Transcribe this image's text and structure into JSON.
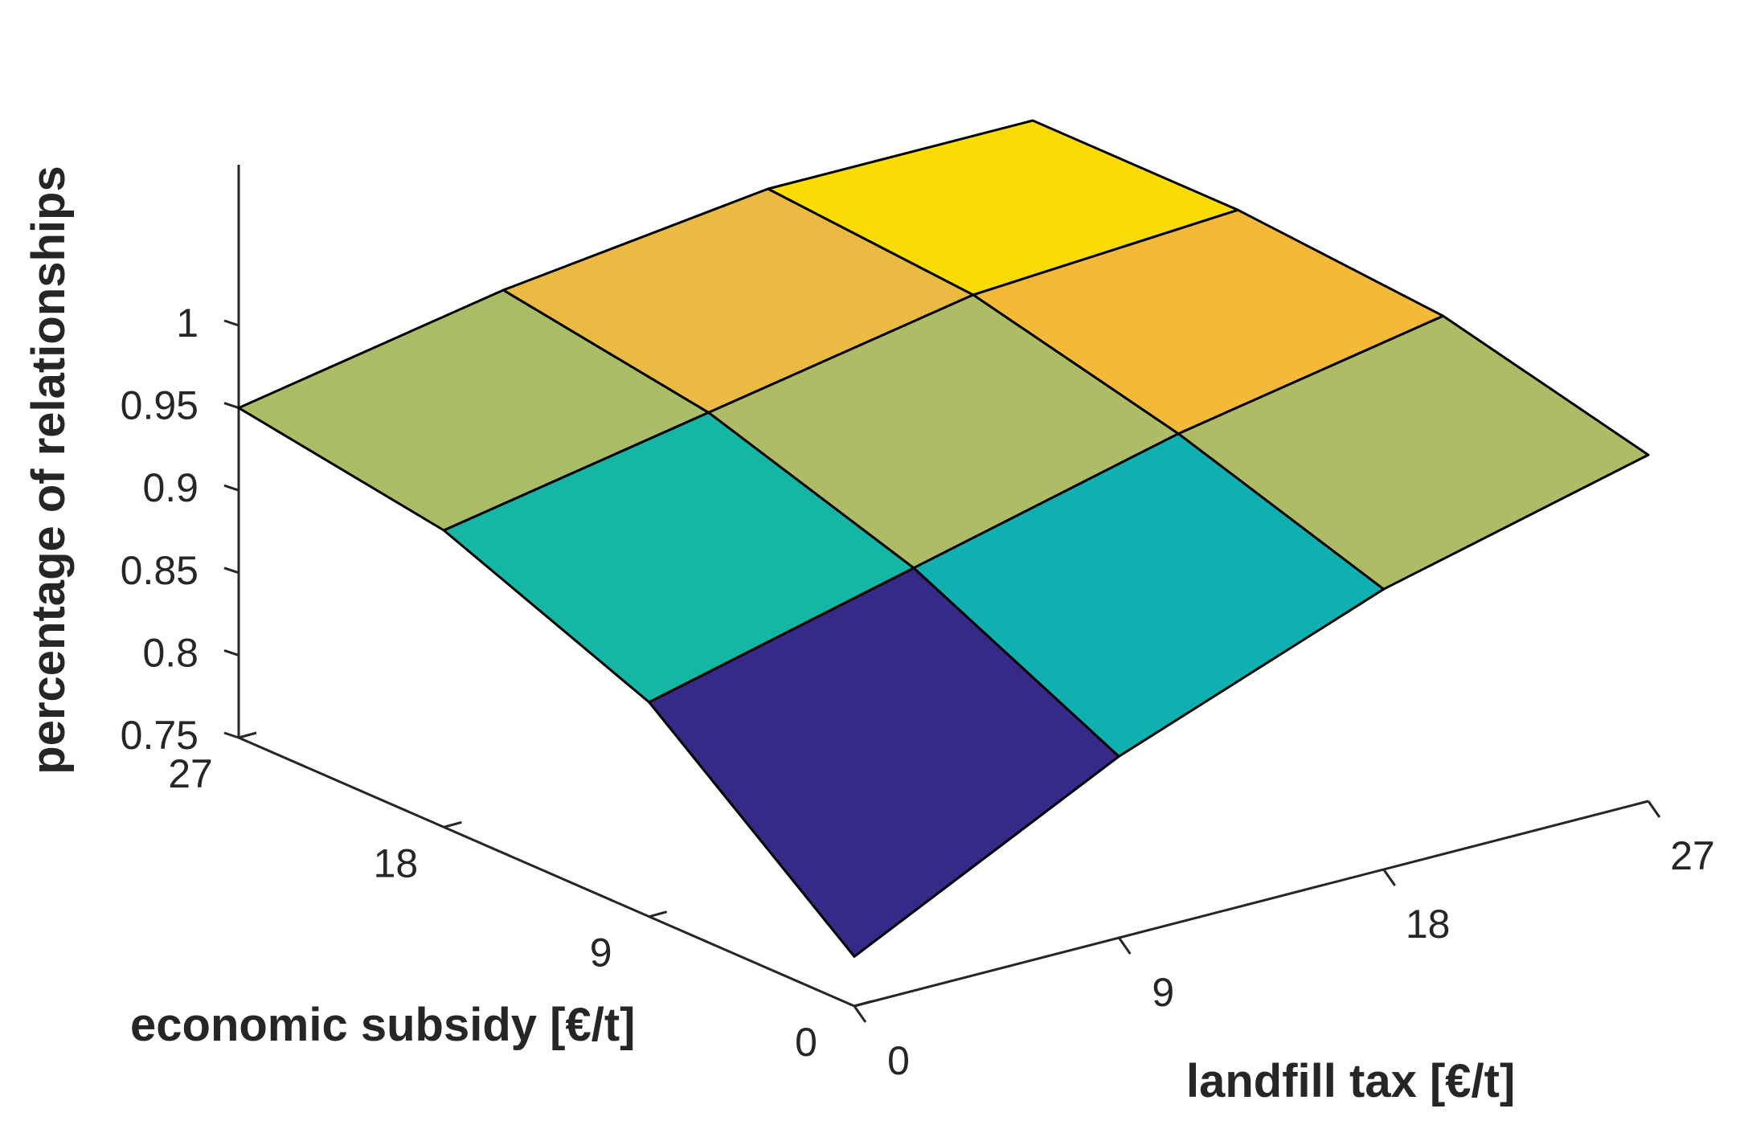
{
  "chart_data": {
    "type": "surface",
    "xlabel": "landfill tax [€/t]",
    "ylabel": "economic subsidy [€/t]",
    "zlabel": "percentage of relationships",
    "x": [
      0,
      9,
      18,
      27
    ],
    "y": [
      0,
      9,
      18,
      27
    ],
    "x_ticks": [
      "0",
      "9",
      "18",
      "27"
    ],
    "y_ticks": [
      "0",
      "9",
      "18",
      "27"
    ],
    "z_ticks": [
      "0.75",
      "0.8",
      "0.85",
      "0.9",
      "0.95",
      "1"
    ],
    "zlim": [
      0.75,
      1
    ],
    "z": [
      [
        0.78,
        0.86,
        0.92,
        0.96
      ],
      [
        0.88,
        0.92,
        0.96,
        0.99
      ],
      [
        0.93,
        0.96,
        0.99,
        1.0
      ],
      [
        0.95,
        0.98,
        1.0,
        1.0
      ]
    ],
    "colormap": [
      "#352a87",
      "#0ba5c8",
      "#12b6a6",
      "#8bbd6c",
      "#bcbd62",
      "#d0bd56",
      "#fbb834",
      "#fcc91e",
      "#f9dc03"
    ]
  }
}
